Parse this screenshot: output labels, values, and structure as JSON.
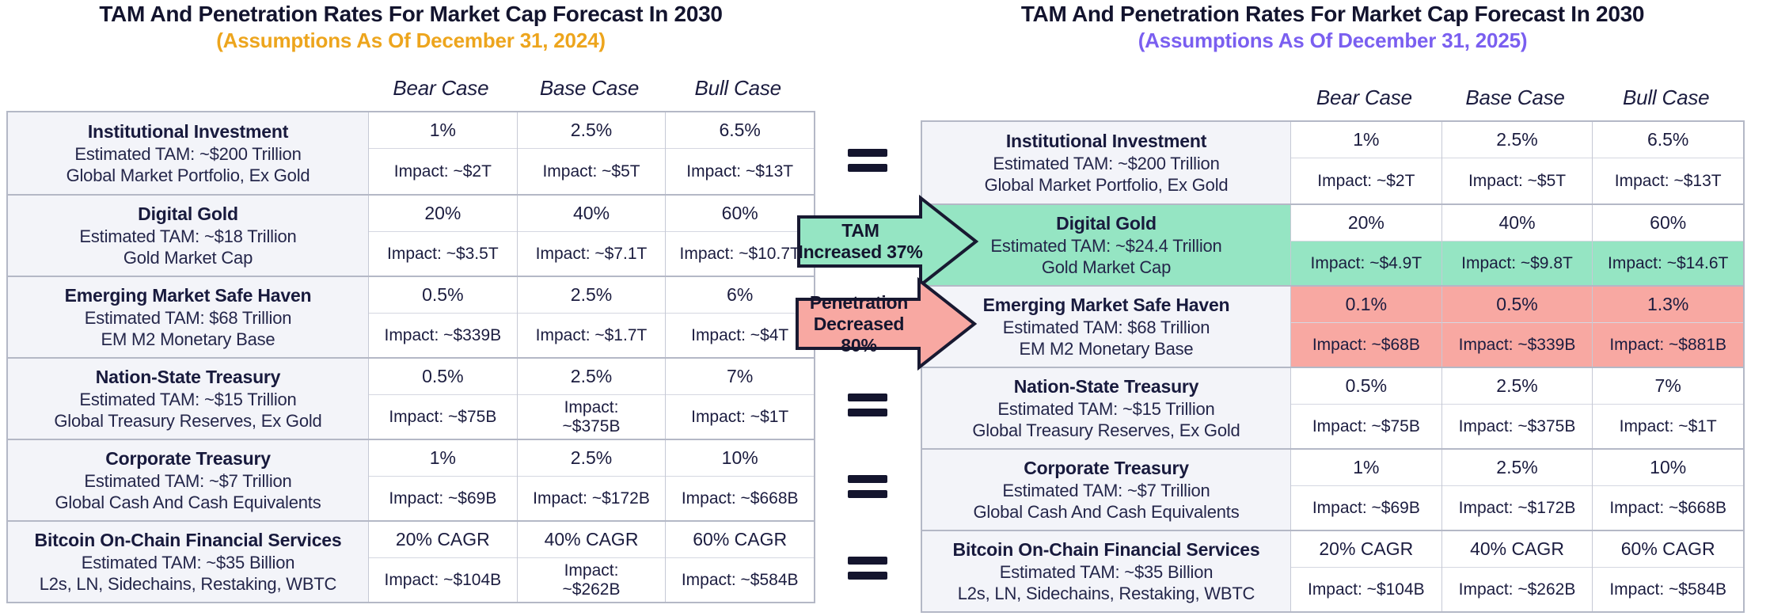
{
  "chart_data": [
    {
      "type": "table",
      "title": "TAM And Penetration Rates For Market Cap Forecast In 2030",
      "subtitle": "(Assumptions As Of December 31, 2024)",
      "subtitle_color": "#EDA51D",
      "case_headers": [
        "Bear Case",
        "Base Case",
        "Bull Case"
      ],
      "rows": [
        {
          "name": "Institutional Investment",
          "tam": "Estimated TAM: ~$200 Trillion",
          "desc": "Global Market Portfolio, Ex Gold",
          "pct": [
            "1%",
            "2.5%",
            "6.5%"
          ],
          "impact": [
            "Impact: ~$2T",
            "Impact: ~$5T",
            "Impact: ~$13T"
          ],
          "highlight": "none"
        },
        {
          "name": "Digital Gold",
          "tam": "Estimated TAM: ~$18 Trillion",
          "desc": "Gold Market Cap",
          "pct": [
            "20%",
            "40%",
            "60%"
          ],
          "impact": [
            "Impact: ~$3.5T",
            "Impact: ~$7.1T",
            "Impact: ~$10.7T"
          ],
          "highlight": "none"
        },
        {
          "name": "Emerging Market Safe Haven",
          "tam": "Estimated TAM: $68 Trillion",
          "desc": "EM M2 Monetary Base",
          "pct": [
            "0.5%",
            "2.5%",
            "6%"
          ],
          "impact": [
            "Impact: ~$339B",
            "Impact: ~$1.7T",
            "Impact: ~$4T"
          ],
          "highlight": "none"
        },
        {
          "name": "Nation-State Treasury",
          "tam": "Estimated TAM: ~$15 Trillion",
          "desc": "Global Treasury Reserves, Ex Gold",
          "pct": [
            "0.5%",
            "2.5%",
            "7%"
          ],
          "impact": [
            "Impact: ~$75B",
            "Impact:\n~$375B",
            "Impact: ~$1T"
          ],
          "highlight": "none"
        },
        {
          "name": "Corporate Treasury",
          "tam": "Estimated TAM: ~$7 Trillion",
          "desc": "Global Cash And Cash Equivalents",
          "pct": [
            "1%",
            "2.5%",
            "10%"
          ],
          "impact": [
            "Impact: ~$69B",
            "Impact: ~$172B",
            "Impact: ~$668B"
          ],
          "highlight": "none"
        },
        {
          "name": "Bitcoin On-Chain Financial Services",
          "tam": "Estimated TAM: ~$35 Billion",
          "desc": "L2s, LN, Sidechains, Restaking, WBTC",
          "pct": [
            "20% CAGR",
            "40% CAGR",
            "60% CAGR"
          ],
          "impact": [
            "Impact: ~$104B",
            "Impact:\n~$262B",
            "Impact: ~$584B"
          ],
          "highlight": "none"
        }
      ]
    },
    {
      "type": "table",
      "title": "TAM And Penetration Rates For Market Cap Forecast In 2030",
      "subtitle": "(Assumptions As Of December 31, 2025)",
      "subtitle_color": "#7A5FF0",
      "case_headers": [
        "Bear Case",
        "Base Case",
        "Bull Case"
      ],
      "rows": [
        {
          "name": "Institutional Investment",
          "tam": "Estimated TAM: ~$200 Trillion",
          "desc": "Global Market Portfolio, Ex Gold",
          "pct": [
            "1%",
            "2.5%",
            "6.5%"
          ],
          "impact": [
            "Impact: ~$2T",
            "Impact: ~$5T",
            "Impact: ~$13T"
          ],
          "highlight": "none"
        },
        {
          "name": "Digital Gold",
          "tam": "Estimated TAM: ~$24.4 Trillion",
          "desc": "Gold Market Cap",
          "pct": [
            "20%",
            "40%",
            "60%"
          ],
          "impact": [
            "Impact: ~$4.9T",
            "Impact: ~$9.8T",
            "Impact: ~$14.6T"
          ],
          "highlight": "green"
        },
        {
          "name": "Emerging Market Safe Haven",
          "tam": "Estimated TAM: $68 Trillion",
          "desc": "EM M2 Monetary Base",
          "pct": [
            "0.1%",
            "0.5%",
            "1.3%"
          ],
          "impact": [
            "Impact: ~$68B",
            "Impact: ~$339B",
            "Impact: ~$881B"
          ],
          "highlight": "pink"
        },
        {
          "name": "Nation-State Treasury",
          "tam": "Estimated TAM: ~$15 Trillion",
          "desc": "Global Treasury Reserves, Ex Gold",
          "pct": [
            "0.5%",
            "2.5%",
            "7%"
          ],
          "impact": [
            "Impact: ~$75B",
            "Impact: ~$375B",
            "Impact: ~$1T"
          ],
          "highlight": "none"
        },
        {
          "name": "Corporate Treasury",
          "tam": "Estimated TAM: ~$7 Trillion",
          "desc": "Global Cash And Cash Equivalents",
          "pct": [
            "1%",
            "2.5%",
            "10%"
          ],
          "impact": [
            "Impact: ~$69B",
            "Impact: ~$172B",
            "Impact: ~$668B"
          ],
          "highlight": "none"
        },
        {
          "name": "Bitcoin On-Chain Financial Services",
          "tam": "Estimated TAM: ~$35 Billion",
          "desc": "L2s, LN, Sidechains, Restaking, WBTC",
          "pct": [
            "20% CAGR",
            "40% CAGR",
            "60% CAGR"
          ],
          "impact": [
            "Impact: ~$104B",
            "Impact: ~$262B",
            "Impact: ~$584B"
          ],
          "highlight": "none"
        }
      ]
    }
  ],
  "middle": {
    "equals_sign": "=",
    "arrows": [
      {
        "label": "TAM\nIncreased 37%",
        "color": "#95E5C3",
        "points_to_row": "Digital Gold"
      },
      {
        "label": "Penetration\nDecreased 80%",
        "color": "#F8A8A2",
        "points_to_row": "Emerging Market Safe Haven"
      }
    ]
  },
  "colors": {
    "highlight_green": "#95E5C3",
    "highlight_pink": "#F8A8A2",
    "navy_text": "#1B1C3F",
    "subtitle_orange": "#EDA51D",
    "subtitle_purple": "#7A5FF0",
    "label_cell_bg": "#F3F4F9",
    "border_gray": "#B4B8C6"
  }
}
